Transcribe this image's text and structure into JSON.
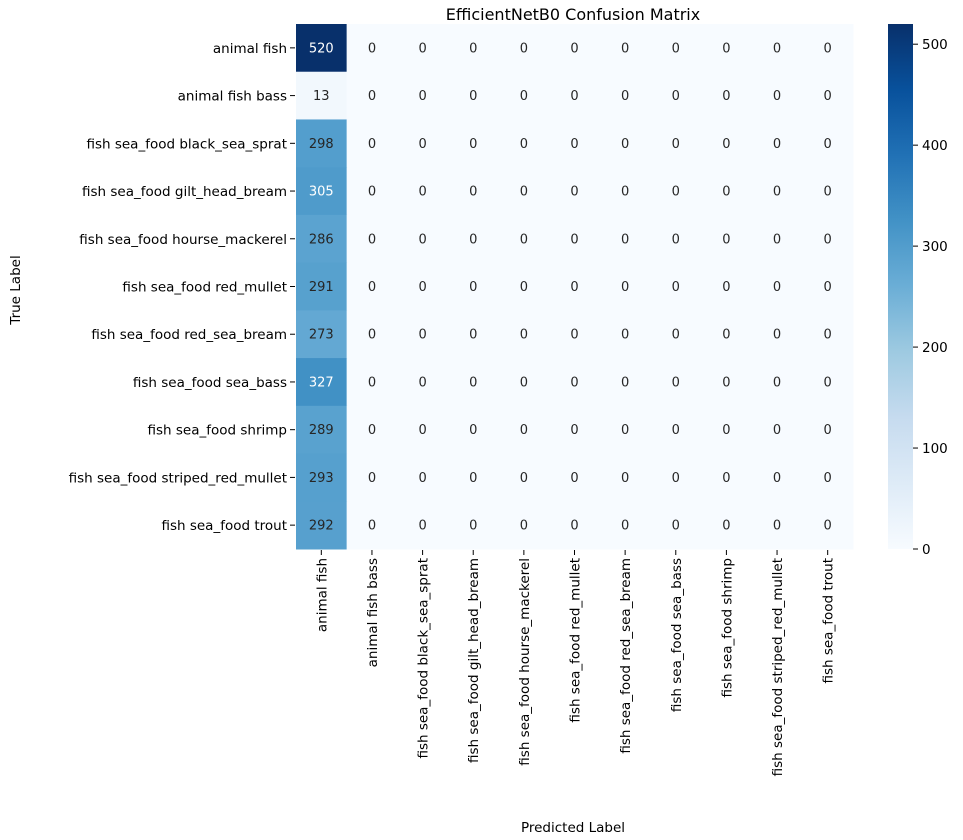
{
  "chart_data": {
    "type": "heatmap",
    "title": "EfficientNetB0 Confusion Matrix",
    "xlabel": "Predicted Label",
    "ylabel": "True Label",
    "x_categories": [
      "animal fish",
      "animal fish bass",
      "fish sea_food black_sea_sprat",
      "fish sea_food gilt_head_bream",
      "fish sea_food hourse_mackerel",
      "fish sea_food red_mullet",
      "fish sea_food red_sea_bream",
      "fish sea_food sea_bass",
      "fish sea_food shrimp",
      "fish sea_food striped_red_mullet",
      "fish sea_food trout"
    ],
    "y_categories": [
      "animal fish",
      "animal fish bass",
      "fish sea_food black_sea_sprat",
      "fish sea_food gilt_head_bream",
      "fish sea_food hourse_mackerel",
      "fish sea_food red_mullet",
      "fish sea_food red_sea_bream",
      "fish sea_food sea_bass",
      "fish sea_food shrimp",
      "fish sea_food striped_red_mullet",
      "fish sea_food trout"
    ],
    "values": [
      [
        520,
        0,
        0,
        0,
        0,
        0,
        0,
        0,
        0,
        0,
        0
      ],
      [
        13,
        0,
        0,
        0,
        0,
        0,
        0,
        0,
        0,
        0,
        0
      ],
      [
        298,
        0,
        0,
        0,
        0,
        0,
        0,
        0,
        0,
        0,
        0
      ],
      [
        305,
        0,
        0,
        0,
        0,
        0,
        0,
        0,
        0,
        0,
        0
      ],
      [
        286,
        0,
        0,
        0,
        0,
        0,
        0,
        0,
        0,
        0,
        0
      ],
      [
        291,
        0,
        0,
        0,
        0,
        0,
        0,
        0,
        0,
        0,
        0
      ],
      [
        273,
        0,
        0,
        0,
        0,
        0,
        0,
        0,
        0,
        0,
        0
      ],
      [
        327,
        0,
        0,
        0,
        0,
        0,
        0,
        0,
        0,
        0,
        0
      ],
      [
        289,
        0,
        0,
        0,
        0,
        0,
        0,
        0,
        0,
        0,
        0
      ],
      [
        293,
        0,
        0,
        0,
        0,
        0,
        0,
        0,
        0,
        0,
        0
      ],
      [
        292,
        0,
        0,
        0,
        0,
        0,
        0,
        0,
        0,
        0,
        0
      ]
    ],
    "colorbar": {
      "range": [
        0,
        520
      ],
      "ticks": [
        0,
        100,
        200,
        300,
        400,
        500
      ]
    },
    "colormap": "Blues",
    "colors": {
      "low": "#f7fbff",
      "high": "#08306b"
    }
  }
}
